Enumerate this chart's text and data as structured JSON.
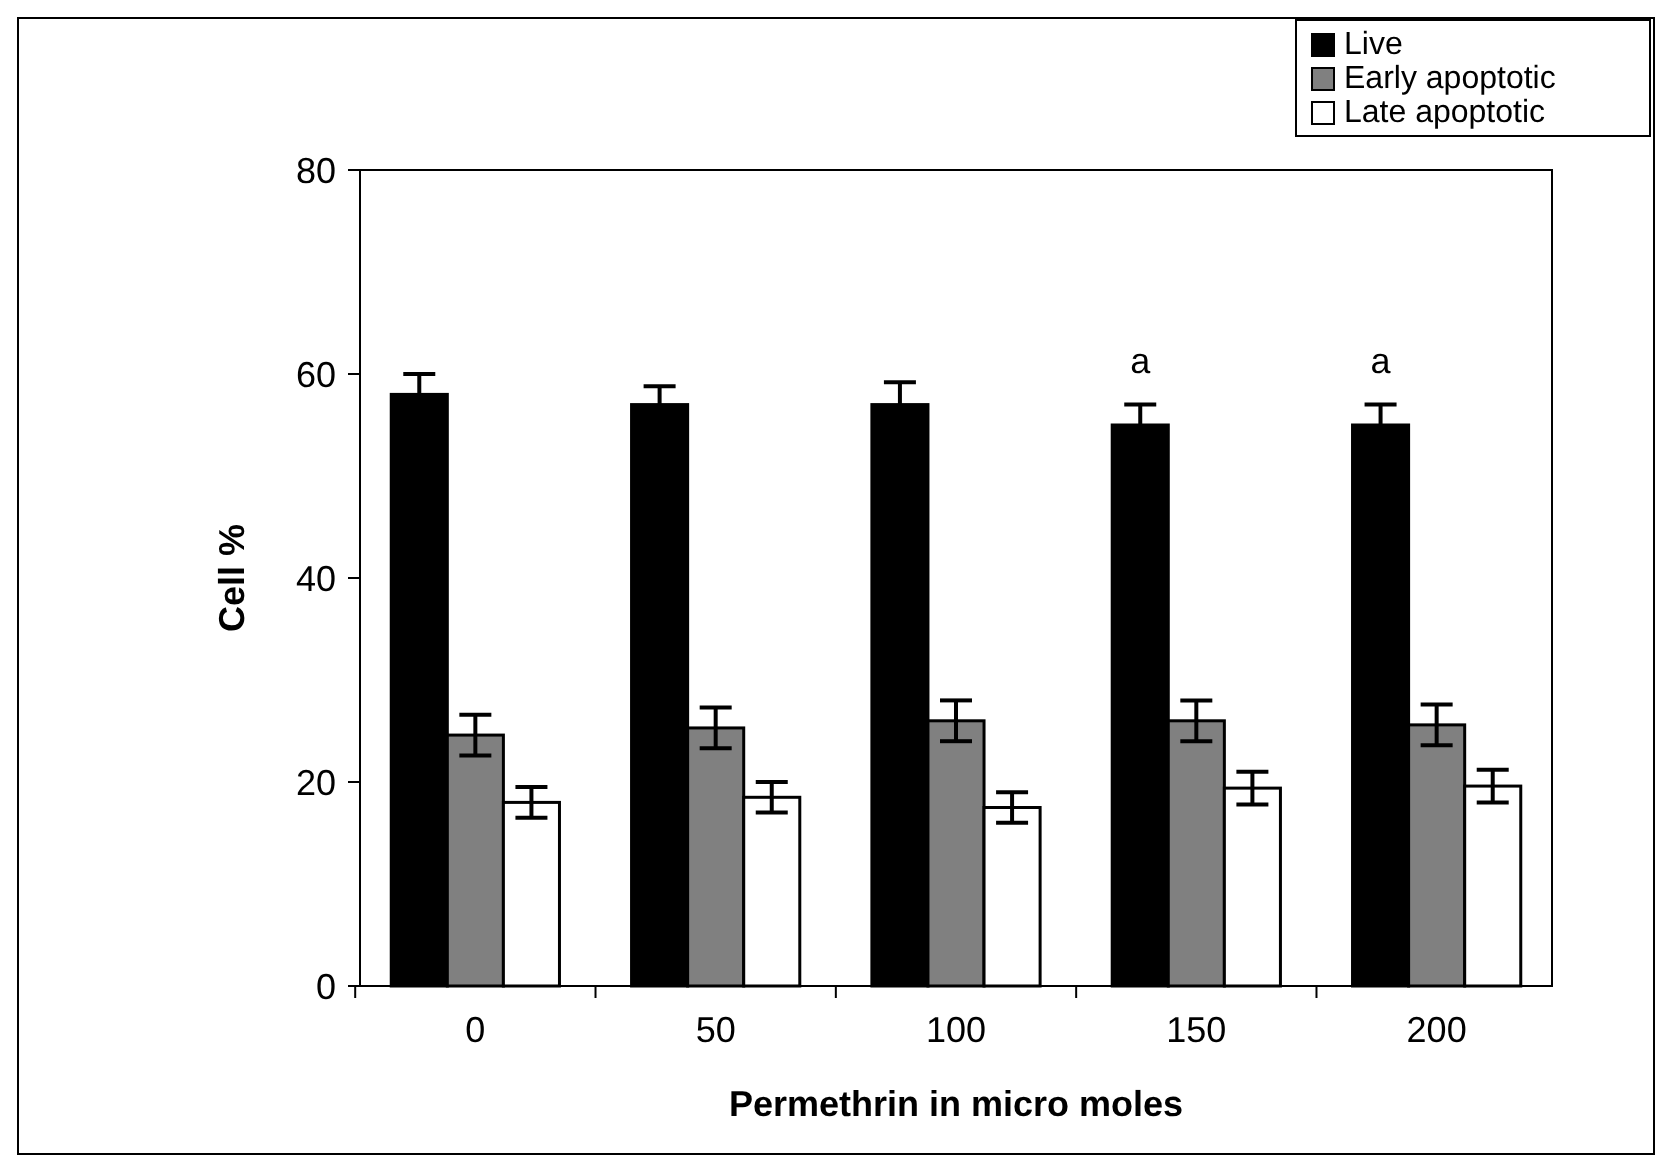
{
  "chart_data": {
    "type": "bar",
    "xlabel": "Permethrin in micro moles",
    "ylabel": "Cell %",
    "categories": [
      "0",
      "50",
      "100",
      "150",
      "200"
    ],
    "series": [
      {
        "name": "Live",
        "color": "#000000",
        "values": [
          58,
          57,
          57,
          55,
          55
        ],
        "errors": [
          2,
          1.8,
          2.2,
          2,
          2
        ]
      },
      {
        "name": "Early apoptotic",
        "color": "#808080",
        "values": [
          24.6,
          25.3,
          26,
          26,
          25.6
        ],
        "errors": [
          2,
          2,
          2,
          2,
          2
        ]
      },
      {
        "name": "Late apoptotic",
        "color": "#ffffff",
        "values": [
          18,
          18.5,
          17.5,
          19.4,
          19.6
        ],
        "errors": [
          1.5,
          1.5,
          1.5,
          1.6,
          1.6
        ]
      }
    ],
    "annotations": [
      "a",
      "a"
    ],
    "ylim": [
      0,
      80
    ],
    "yticks": [
      0,
      20,
      40,
      60,
      80
    ],
    "grid": false,
    "legend": "top right"
  }
}
